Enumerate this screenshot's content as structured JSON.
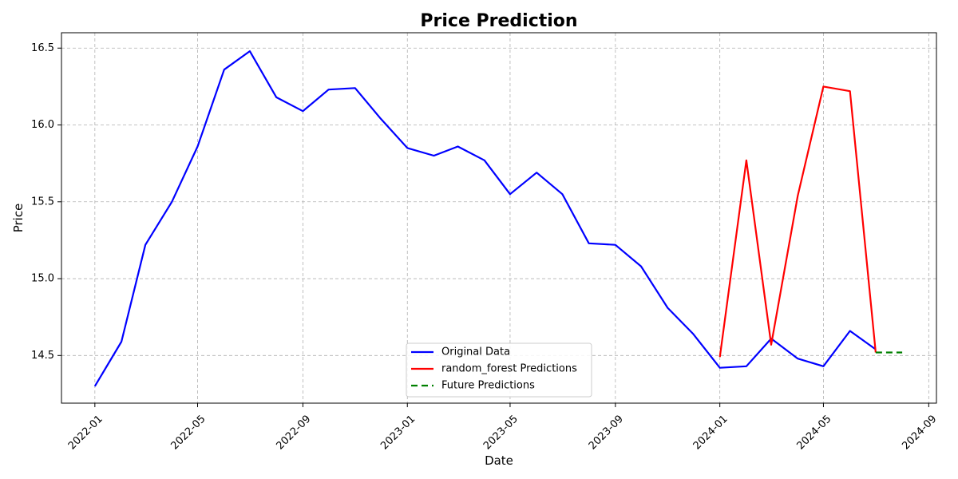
{
  "chart_data": {
    "type": "line",
    "title": "Price Prediction",
    "xlabel": "Date",
    "ylabel": "Price",
    "xlim": [
      "2021-11-23",
      "2024-09-10"
    ],
    "ylim": [
      14.19,
      16.6
    ],
    "x_ticks": [
      "2022-01",
      "2022-05",
      "2022-09",
      "2023-01",
      "2023-05",
      "2023-09",
      "2024-01",
      "2024-05",
      "2024-09"
    ],
    "y_ticks": [
      "14.5",
      "15.0",
      "15.5",
      "16.0",
      "16.5"
    ],
    "grid": true,
    "legend_position": "lower center",
    "series": [
      {
        "name": "Original Data",
        "color": "#0000ff",
        "style": "solid",
        "points": [
          [
            "2022-01-01",
            14.3
          ],
          [
            "2022-02-01",
            14.59
          ],
          [
            "2022-03-01",
            15.22
          ],
          [
            "2022-04-01",
            15.5
          ],
          [
            "2022-05-01",
            15.86
          ],
          [
            "2022-06-01",
            16.36
          ],
          [
            "2022-07-01",
            16.48
          ],
          [
            "2022-08-01",
            16.18
          ],
          [
            "2022-09-01",
            16.09
          ],
          [
            "2022-10-01",
            16.23
          ],
          [
            "2022-11-01",
            16.24
          ],
          [
            "2022-12-01",
            16.04
          ],
          [
            "2023-01-01",
            15.85
          ],
          [
            "2023-02-01",
            15.8
          ],
          [
            "2023-03-01",
            15.86
          ],
          [
            "2023-04-01",
            15.77
          ],
          [
            "2023-05-01",
            15.55
          ],
          [
            "2023-06-01",
            15.69
          ],
          [
            "2023-07-01",
            15.55
          ],
          [
            "2023-08-01",
            15.23
          ],
          [
            "2023-09-01",
            15.22
          ],
          [
            "2023-10-01",
            15.08
          ],
          [
            "2023-11-01",
            14.81
          ],
          [
            "2023-12-01",
            14.64
          ],
          [
            "2024-01-01",
            14.42
          ],
          [
            "2024-02-01",
            14.43
          ],
          [
            "2024-03-01",
            14.61
          ],
          [
            "2024-04-01",
            14.48
          ],
          [
            "2024-05-01",
            14.43
          ],
          [
            "2024-06-01",
            14.66
          ],
          [
            "2024-07-01",
            14.54
          ]
        ]
      },
      {
        "name": "random_forest Predictions",
        "color": "#ff0000",
        "style": "solid",
        "points": [
          [
            "2024-01-01",
            14.49
          ],
          [
            "2024-02-01",
            15.77
          ],
          [
            "2024-03-01",
            14.57
          ],
          [
            "2024-04-01",
            15.54
          ],
          [
            "2024-05-01",
            16.25
          ],
          [
            "2024-06-01",
            16.22
          ],
          [
            "2024-07-01",
            14.52
          ]
        ]
      },
      {
        "name": "Future Predictions",
        "color": "#008000",
        "style": "dashed",
        "points": [
          [
            "2024-07-01",
            14.52
          ],
          [
            "2024-08-01",
            14.52
          ]
        ]
      }
    ]
  }
}
